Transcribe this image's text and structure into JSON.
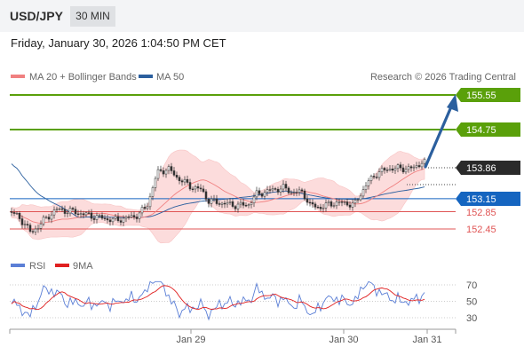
{
  "header": {
    "pair": "USD/JPY",
    "timeframe": "30 MIN"
  },
  "datetime": "Friday, January 30, 2026 1:04:50 PM CET",
  "legend": {
    "ma20": "MA 20 + Bollinger Bands",
    "ma50": "MA 50",
    "rsi": "RSI",
    "ma9": "9MA"
  },
  "copyright": "Research © 2026 Trading Central",
  "colors": {
    "ma20": "#f08080",
    "ma50": "#2b5f9e",
    "resistance": "#5aa00a",
    "pivot": "#1565c0",
    "support": "#e05555",
    "bands": "#fcdcdc",
    "rsi": "#5b7fd6",
    "rsi_ma9": "#e02020",
    "arrow": "#2b5f9e",
    "last": "#2a2a2a"
  },
  "chart_data": {
    "type": "candlestick",
    "xlabels": [
      "Jan 29",
      "Jan 30",
      "Jan 31"
    ],
    "last_price": "153.86",
    "levels": [
      {
        "role": "resistance",
        "label": "155.55",
        "value": 155.55
      },
      {
        "role": "resistance",
        "label": "154.75",
        "value": 154.75
      },
      {
        "role": "pivot",
        "label": "153.15",
        "value": 153.15
      },
      {
        "role": "support",
        "label": "152.85",
        "value": 152.85
      },
      {
        "role": "support",
        "label": "152.45",
        "value": 152.45
      }
    ],
    "forecast": {
      "from": 153.86,
      "to": 155.55,
      "direction": "up"
    },
    "rsi_levels": [
      {
        "label": "70",
        "value": 70
      },
      {
        "label": "50",
        "value": 50
      },
      {
        "label": "30",
        "value": 30
      }
    ]
  }
}
